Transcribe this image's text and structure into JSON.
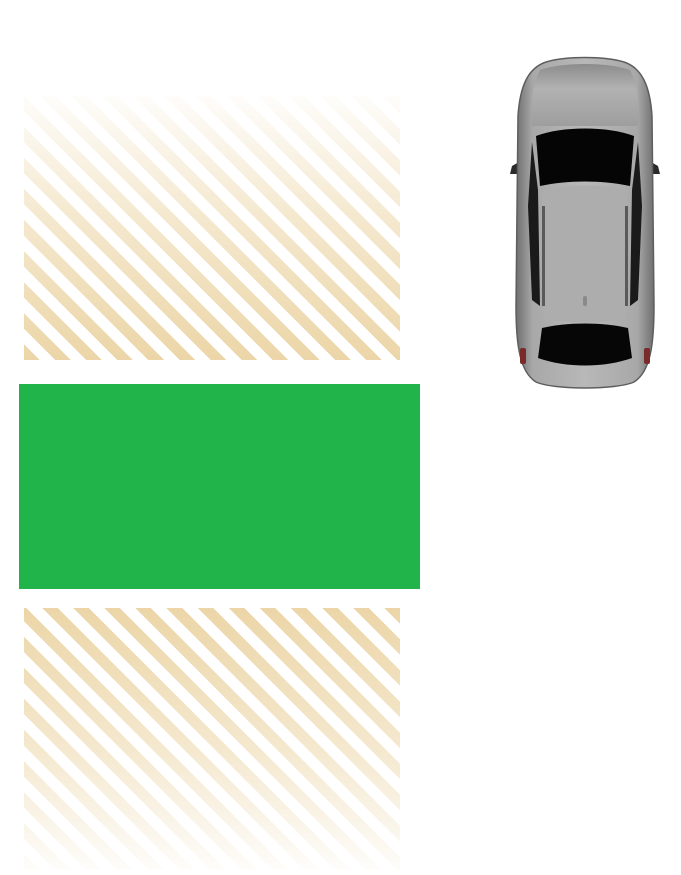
{
  "parking": {
    "slot_color": "#21b44b",
    "hatch_color": "#ecd6a8",
    "top_area_icon": "hatched-no-parking-area",
    "bottom_area_icon": "hatched-no-parking-area",
    "car_icon": "car-top-view-icon",
    "car_body_color": "#9a9a9a",
    "car_glass_color": "#0a0a0a"
  }
}
